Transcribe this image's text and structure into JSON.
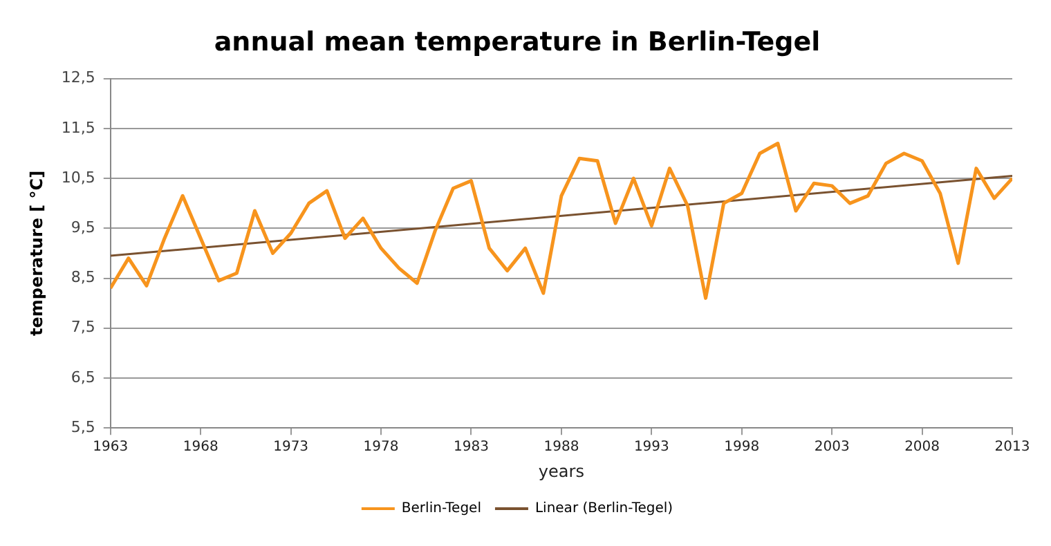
{
  "chart_data": {
    "type": "line",
    "title": "annual mean temperature in Berlin-Tegel",
    "xlabel": "years",
    "ylabel": "temperature [ °C]",
    "x": [
      1963,
      1964,
      1965,
      1966,
      1967,
      1968,
      1969,
      1970,
      1971,
      1972,
      1973,
      1974,
      1975,
      1976,
      1977,
      1978,
      1979,
      1980,
      1981,
      1982,
      1983,
      1984,
      1985,
      1986,
      1987,
      1988,
      1989,
      1990,
      1991,
      1992,
      1993,
      1994,
      1995,
      1996,
      1997,
      1998,
      1999,
      2000,
      2001,
      2002,
      2003,
      2004,
      2005,
      2006,
      2007,
      2008,
      2009,
      2010,
      2011,
      2012,
      2013
    ],
    "series": [
      {
        "name": "Berlin-Tegel",
        "color": "#f7941d",
        "values": [
          8.3,
          8.9,
          8.35,
          9.3,
          10.15,
          9.3,
          8.45,
          8.6,
          9.85,
          9.0,
          9.4,
          10.0,
          10.25,
          9.3,
          9.7,
          9.1,
          8.7,
          8.4,
          9.45,
          10.3,
          10.45,
          9.1,
          8.65,
          9.1,
          8.2,
          10.15,
          10.9,
          10.85,
          9.6,
          10.5,
          9.55,
          10.7,
          9.95,
          8.1,
          10.0,
          10.2,
          11.0,
          11.2,
          9.85,
          10.4,
          10.35,
          10.0,
          10.15,
          10.8,
          11.0,
          10.85,
          10.2,
          8.8,
          10.7,
          10.1,
          10.5
        ]
      },
      {
        "name": "Linear (Berlin-Tegel)",
        "color": "#7a5230",
        "x": [
          1963,
          2013
        ],
        "values": [
          8.95,
          10.55
        ]
      }
    ],
    "xlim": [
      1963,
      2013
    ],
    "xticks": [
      1963,
      1968,
      1973,
      1978,
      1983,
      1988,
      1993,
      1998,
      2003,
      2008,
      2013
    ],
    "ylim": [
      5.5,
      12.5
    ],
    "yticks": [
      {
        "value": 5.5,
        "label": "5,5"
      },
      {
        "value": 6.5,
        "label": "6,5"
      },
      {
        "value": 7.5,
        "label": "7,5"
      },
      {
        "value": 8.5,
        "label": "8,5"
      },
      {
        "value": 9.5,
        "label": "9,5"
      },
      {
        "value": 10.5,
        "label": "10,5"
      },
      {
        "value": 11.5,
        "label": "11,5"
      },
      {
        "value": 12.5,
        "label": "12,5"
      }
    ],
    "grid": "y",
    "legend": "bottom",
    "marker": "none",
    "line_style": "solid"
  }
}
